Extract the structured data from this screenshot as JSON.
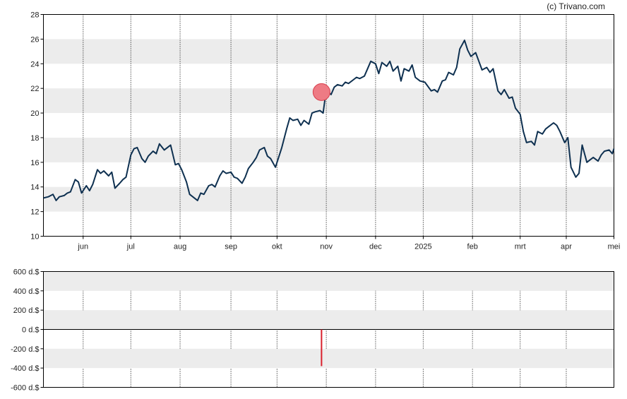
{
  "credit": "(c) Trivano.com",
  "colors": {
    "price_line": "#0e3050",
    "marker_fill": "#ee7b84",
    "marker_stroke": "#d9404e",
    "volume_bar": "#d9202c",
    "band": "#ececec",
    "axis": "#000000"
  },
  "chart_data": [
    {
      "type": "line",
      "title": "",
      "xlabel": "",
      "ylabel": "",
      "ylim": [
        10,
        28
      ],
      "xlim": [
        "2024-05-07",
        "2025-05-01"
      ],
      "yticks": [
        "10",
        "12",
        "14",
        "16",
        "18",
        "20",
        "22",
        "24",
        "26",
        "28"
      ],
      "xticks": [
        {
          "date": "2024-06-01",
          "label": "jun"
        },
        {
          "date": "2024-07-01",
          "label": "jul"
        },
        {
          "date": "2024-08-01",
          "label": "aug"
        },
        {
          "date": "2024-09-02",
          "label": "sep"
        },
        {
          "date": "2024-10-01",
          "label": "okt"
        },
        {
          "date": "2024-11-01",
          "label": "nov"
        },
        {
          "date": "2024-12-02",
          "label": "dec"
        },
        {
          "date": "2025-01-01",
          "label": "2025"
        },
        {
          "date": "2025-02-01",
          "label": "feb"
        },
        {
          "date": "2025-03-03",
          "label": "mrt"
        },
        {
          "date": "2025-04-01",
          "label": "apr"
        },
        {
          "date": "2025-05-01",
          "label": "mei"
        }
      ],
      "grid": "alternating horizontal bands, dotted vertical month lines",
      "series": [
        {
          "points": [
            [
              "2024-05-07",
              13.1
            ],
            [
              "2024-05-10",
              13.2
            ],
            [
              "2024-05-13",
              13.4
            ],
            [
              "2024-05-15",
              12.9
            ],
            [
              "2024-05-17",
              13.2
            ],
            [
              "2024-05-20",
              13.3
            ],
            [
              "2024-05-22",
              13.5
            ],
            [
              "2024-05-24",
              13.6
            ],
            [
              "2024-05-27",
              14.6
            ],
            [
              "2024-05-29",
              14.4
            ],
            [
              "2024-05-31",
              13.5
            ],
            [
              "2024-06-03",
              14.1
            ],
            [
              "2024-06-05",
              13.7
            ],
            [
              "2024-06-07",
              14.2
            ],
            [
              "2024-06-10",
              15.4
            ],
            [
              "2024-06-12",
              15.1
            ],
            [
              "2024-06-14",
              15.3
            ],
            [
              "2024-06-17",
              14.9
            ],
            [
              "2024-06-19",
              15.2
            ],
            [
              "2024-06-21",
              13.9
            ],
            [
              "2024-06-24",
              14.3
            ],
            [
              "2024-06-26",
              14.6
            ],
            [
              "2024-06-28",
              14.8
            ],
            [
              "2024-07-01",
              16.6
            ],
            [
              "2024-07-03",
              17.1
            ],
            [
              "2024-07-05",
              17.2
            ],
            [
              "2024-07-08",
              16.3
            ],
            [
              "2024-07-10",
              16.0
            ],
            [
              "2024-07-12",
              16.5
            ],
            [
              "2024-07-15",
              16.9
            ],
            [
              "2024-07-17",
              16.7
            ],
            [
              "2024-07-19",
              17.5
            ],
            [
              "2024-07-22",
              17.0
            ],
            [
              "2024-07-24",
              17.2
            ],
            [
              "2024-07-26",
              17.4
            ],
            [
              "2024-07-29",
              15.8
            ],
            [
              "2024-07-31",
              15.9
            ],
            [
              "2024-08-02",
              15.4
            ],
            [
              "2024-08-05",
              14.4
            ],
            [
              "2024-08-07",
              13.4
            ],
            [
              "2024-08-09",
              13.2
            ],
            [
              "2024-08-12",
              12.9
            ],
            [
              "2024-08-14",
              13.5
            ],
            [
              "2024-08-16",
              13.4
            ],
            [
              "2024-08-19",
              14.1
            ],
            [
              "2024-08-21",
              14.2
            ],
            [
              "2024-08-23",
              14.0
            ],
            [
              "2024-08-26",
              14.9
            ],
            [
              "2024-08-28",
              15.3
            ],
            [
              "2024-08-30",
              15.1
            ],
            [
              "2024-09-02",
              15.2
            ],
            [
              "2024-09-04",
              14.8
            ],
            [
              "2024-09-06",
              14.7
            ],
            [
              "2024-09-09",
              14.3
            ],
            [
              "2024-09-11",
              14.8
            ],
            [
              "2024-09-13",
              15.5
            ],
            [
              "2024-09-16",
              16.0
            ],
            [
              "2024-09-18",
              16.4
            ],
            [
              "2024-09-20",
              17.0
            ],
            [
              "2024-09-23",
              17.2
            ],
            [
              "2024-09-25",
              16.5
            ],
            [
              "2024-09-27",
              16.3
            ],
            [
              "2024-09-30",
              15.6
            ],
            [
              "2024-10-02",
              16.4
            ],
            [
              "2024-10-04",
              17.2
            ],
            [
              "2024-10-07",
              18.7
            ],
            [
              "2024-10-09",
              19.6
            ],
            [
              "2024-10-11",
              19.4
            ],
            [
              "2024-10-14",
              19.5
            ],
            [
              "2024-10-16",
              19.0
            ],
            [
              "2024-10-18",
              19.4
            ],
            [
              "2024-10-21",
              19.1
            ],
            [
              "2024-10-23",
              20.0
            ],
            [
              "2024-10-25",
              20.1
            ],
            [
              "2024-10-28",
              20.2
            ],
            [
              "2024-10-30",
              20.0
            ],
            [
              "2024-11-01",
              21.9
            ],
            [
              "2024-11-04",
              21.5
            ],
            [
              "2024-11-06",
              22.1
            ],
            [
              "2024-11-08",
              22.3
            ],
            [
              "2024-11-11",
              22.2
            ],
            [
              "2024-11-13",
              22.5
            ],
            [
              "2024-11-15",
              22.4
            ],
            [
              "2024-11-18",
              22.7
            ],
            [
              "2024-11-20",
              22.9
            ],
            [
              "2024-11-22",
              22.8
            ],
            [
              "2024-11-25",
              23.0
            ],
            [
              "2024-11-27",
              23.6
            ],
            [
              "2024-11-29",
              24.2
            ],
            [
              "2024-12-02",
              24.0
            ],
            [
              "2024-12-04",
              23.2
            ],
            [
              "2024-12-06",
              24.1
            ],
            [
              "2024-12-09",
              23.8
            ],
            [
              "2024-12-11",
              24.2
            ],
            [
              "2024-12-13",
              23.4
            ],
            [
              "2024-12-16",
              23.8
            ],
            [
              "2024-12-18",
              22.6
            ],
            [
              "2024-12-20",
              23.6
            ],
            [
              "2024-12-23",
              23.4
            ],
            [
              "2024-12-25",
              23.9
            ],
            [
              "2024-12-27",
              22.9
            ],
            [
              "2024-12-30",
              22.6
            ],
            [
              "2025-01-02",
              22.5
            ],
            [
              "2025-01-06",
              21.8
            ],
            [
              "2025-01-08",
              21.9
            ],
            [
              "2025-01-10",
              21.7
            ],
            [
              "2025-01-13",
              22.6
            ],
            [
              "2025-01-15",
              22.7
            ],
            [
              "2025-01-17",
              23.3
            ],
            [
              "2025-01-20",
              23.1
            ],
            [
              "2025-01-22",
              23.7
            ],
            [
              "2025-01-24",
              25.2
            ],
            [
              "2025-01-27",
              25.9
            ],
            [
              "2025-01-29",
              25.1
            ],
            [
              "2025-01-31",
              24.6
            ],
            [
              "2025-02-03",
              24.9
            ],
            [
              "2025-02-05",
              24.2
            ],
            [
              "2025-02-07",
              23.5
            ],
            [
              "2025-02-10",
              23.7
            ],
            [
              "2025-02-12",
              23.3
            ],
            [
              "2025-02-14",
              23.6
            ],
            [
              "2025-02-17",
              21.8
            ],
            [
              "2025-02-19",
              21.5
            ],
            [
              "2025-02-21",
              21.9
            ],
            [
              "2025-02-24",
              21.2
            ],
            [
              "2025-02-26",
              21.3
            ],
            [
              "2025-02-28",
              20.4
            ],
            [
              "2025-03-03",
              19.9
            ],
            [
              "2025-03-05",
              18.5
            ],
            [
              "2025-03-07",
              17.6
            ],
            [
              "2025-03-10",
              17.7
            ],
            [
              "2025-03-12",
              17.4
            ],
            [
              "2025-03-14",
              18.5
            ],
            [
              "2025-03-17",
              18.3
            ],
            [
              "2025-03-19",
              18.7
            ],
            [
              "2025-03-21",
              18.9
            ],
            [
              "2025-03-24",
              19.2
            ],
            [
              "2025-03-26",
              19.0
            ],
            [
              "2025-03-28",
              18.5
            ],
            [
              "2025-03-31",
              17.6
            ],
            [
              "2025-04-02",
              18.0
            ],
            [
              "2025-04-04",
              15.6
            ],
            [
              "2025-04-07",
              14.8
            ],
            [
              "2025-04-09",
              15.1
            ],
            [
              "2025-04-11",
              17.4
            ],
            [
              "2025-04-14",
              16.0
            ],
            [
              "2025-04-16",
              16.2
            ],
            [
              "2025-04-18",
              16.4
            ],
            [
              "2025-04-21",
              16.1
            ],
            [
              "2025-04-23",
              16.6
            ],
            [
              "2025-04-25",
              16.9
            ],
            [
              "2025-04-28",
              17.0
            ],
            [
              "2025-04-30",
              16.7
            ],
            [
              "2025-05-01",
              17.1
            ]
          ]
        }
      ],
      "annotations": [
        {
          "type": "marker",
          "date": "2024-10-29",
          "value": 21.7
        }
      ]
    },
    {
      "type": "bar",
      "title": "",
      "xlabel": "",
      "ylabel": "",
      "ylim": [
        -600,
        600
      ],
      "yticks": [
        "600 d.$",
        "400 d.$",
        "200 d.$",
        "0 d.$",
        "-200 d.$",
        "-400 d.$",
        "-600 d.$"
      ],
      "bars": [
        {
          "date": "2024-10-29",
          "value": -380
        }
      ]
    }
  ]
}
